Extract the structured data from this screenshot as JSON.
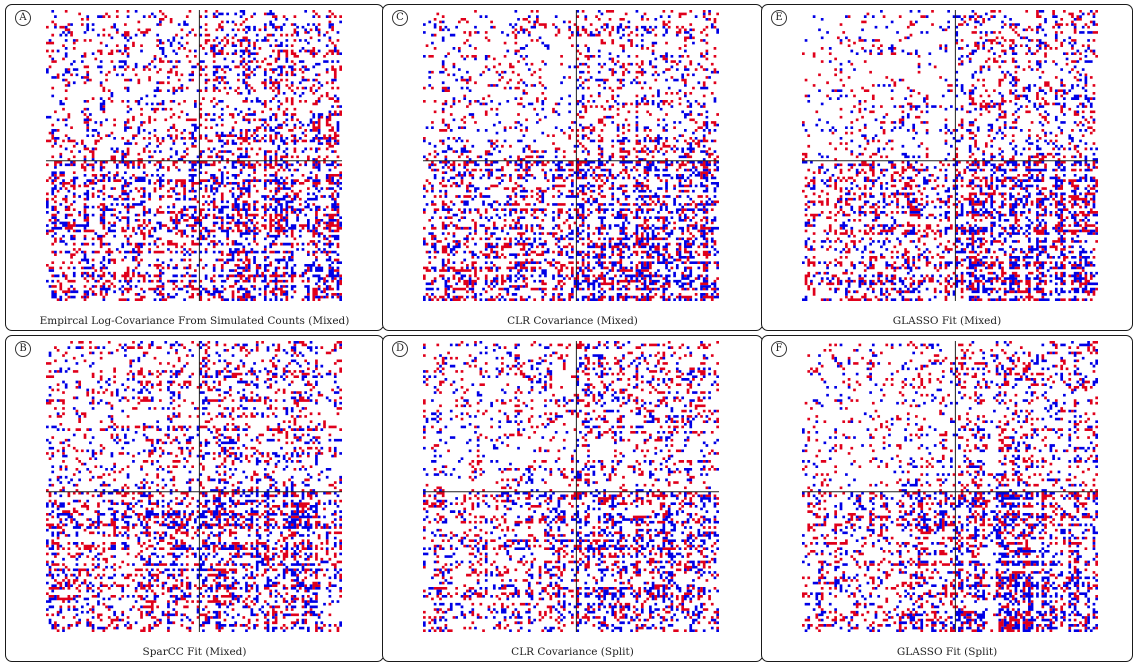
{
  "chart_data": [
    {
      "type": "heatmap",
      "label": "A",
      "title": "Empircal Log-Covariance From Simulated Counts (Mixed)",
      "positive_color": "#e0001b",
      "negative_color": "#0000e6",
      "block_structure": "2x2 blocks; upper-left sparse, lower-right dense",
      "divider_lines": true,
      "seed": 11,
      "density": [
        0.42,
        0.6,
        0.7,
        0.88
      ]
    },
    {
      "type": "heatmap",
      "label": "B",
      "title": "SparCC Fit (Mixed)",
      "positive_color": "#e0001b",
      "negative_color": "#0000e6",
      "block_structure": "2x2 blocks; upper-left sparse, lower-right dense",
      "divider_lines": true,
      "seed": 23,
      "density": [
        0.36,
        0.55,
        0.66,
        0.86
      ]
    },
    {
      "type": "heatmap",
      "label": "C",
      "title": "CLR Covariance (Mixed)",
      "positive_color": "#e0001b",
      "negative_color": "#0000e6",
      "block_structure": "2x2 blocks; upper-left sparse, lower-right dense",
      "divider_lines": true,
      "seed": 37,
      "density": [
        0.3,
        0.52,
        0.62,
        0.86
      ]
    },
    {
      "type": "heatmap",
      "label": "D",
      "title": "CLR Covariance (Split)",
      "positive_color": "#e0001b",
      "negative_color": "#0000e6",
      "block_structure": "2x2 blocks; upper-left sparse, lower-right dense",
      "divider_lines": true,
      "seed": 41,
      "density": [
        0.3,
        0.5,
        0.6,
        0.84
      ]
    },
    {
      "type": "heatmap",
      "label": "E",
      "title": "GLASSO Fit (Mixed)",
      "positive_color": "#e0001b",
      "negative_color": "#0000e6",
      "block_structure": "2x2 blocks; upper-left sparse, lower-right dense",
      "divider_lines": true,
      "seed": 53,
      "density": [
        0.26,
        0.5,
        0.6,
        0.86
      ]
    },
    {
      "type": "heatmap",
      "label": "F",
      "title": "GLASSO Fit (Split)",
      "positive_color": "#e0001b",
      "negative_color": "#0000e6",
      "block_structure": "2x2 blocks; upper-left sparse, lower-right dense",
      "divider_lines": true,
      "seed": 67,
      "density": [
        0.28,
        0.48,
        0.58,
        0.84
      ]
    }
  ]
}
